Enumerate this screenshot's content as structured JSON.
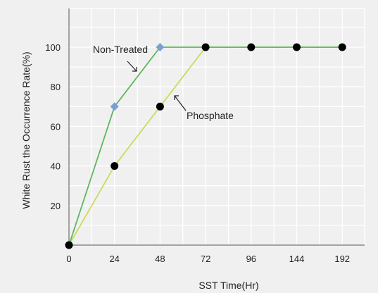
{
  "chart_data": {
    "type": "line",
    "title": "",
    "xlabel": "SST Time(Hr)",
    "ylabel": "White Rust the Occurrence Rate(%)",
    "categories": [
      "0",
      "24",
      "48",
      "72",
      "96",
      "144",
      "192"
    ],
    "ylim": [
      0,
      100
    ],
    "y_ticks": [
      "20",
      "40",
      "60",
      "80",
      "100"
    ],
    "grid": true,
    "series": [
      {
        "name": "Non-Treated",
        "values": [
          0,
          70,
          100,
          100,
          100,
          100,
          100
        ],
        "color": "#5cb85c",
        "marker": "diamond",
        "marker_color": "#7b9fd4"
      },
      {
        "name": "Phosphate",
        "values": [
          0,
          40,
          70,
          100,
          100,
          100,
          100
        ],
        "color": "#c8dc5a",
        "marker": "circle",
        "marker_color": "#000000"
      }
    ],
    "annotations": [
      "Non-Treated",
      "Phosphate"
    ]
  },
  "colors": {
    "background": "#f0f0f0",
    "grid": "#ffffff",
    "axis": "#555555",
    "text": "#222222"
  }
}
